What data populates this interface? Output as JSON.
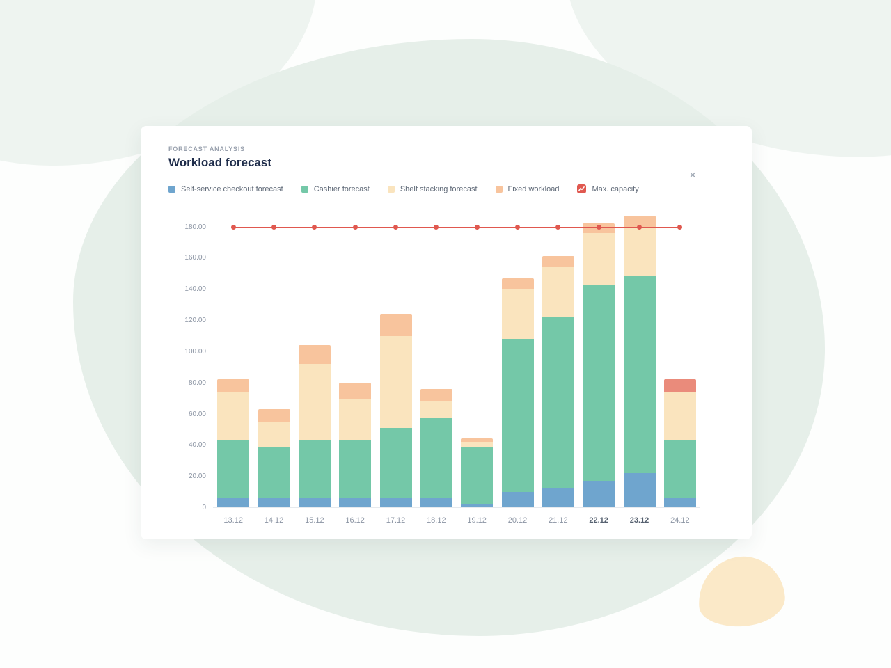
{
  "card": {
    "eyebrow": "FORECAST ANALYSIS",
    "title": "Workload forecast",
    "close_label": "×"
  },
  "legend": [
    {
      "label": "Self-service checkout forecast",
      "color": "#6FA5CE",
      "icon": "square"
    },
    {
      "label": "Cashier forecast",
      "color": "#74C8A8",
      "icon": "square"
    },
    {
      "label": "Shelf stacking forecast",
      "color": "#FAE4BE",
      "icon": "square"
    },
    {
      "label": "Fixed workload",
      "color": "#F8C49D",
      "icon": "square"
    },
    {
      "label": "Max. capacity",
      "color": "#E0584F",
      "icon": "zigzag"
    }
  ],
  "chart_data": {
    "type": "bar",
    "subtype": "stacked-bars-with-capacity-line",
    "categories": [
      "13.12",
      "14.12",
      "15.12",
      "16.12",
      "17.12",
      "18.12",
      "19.12",
      "20.12",
      "21.12",
      "22.12",
      "23.12",
      "24.12"
    ],
    "bold_categories": [
      "22.12",
      "23.12"
    ],
    "series": [
      {
        "name": "Self-service checkout forecast",
        "color": "#6FA5CE",
        "values": [
          6,
          6,
          6,
          6,
          6,
          6,
          2,
          10,
          12,
          17,
          22,
          6
        ]
      },
      {
        "name": "Cashier forecast",
        "color": "#74C8A8",
        "values": [
          37,
          33,
          37,
          37,
          45,
          51,
          37,
          98,
          110,
          126,
          126,
          37
        ]
      },
      {
        "name": "Shelf stacking forecast",
        "color": "#FAE4BE",
        "values": [
          31,
          16,
          49,
          26,
          59,
          11,
          3,
          32,
          32,
          33,
          32,
          31
        ]
      },
      {
        "name": "Fixed workload",
        "color": "#F8C49D",
        "values": [
          8,
          8,
          12,
          11,
          14,
          8,
          2,
          7,
          7,
          6,
          7,
          8
        ]
      }
    ],
    "totals": [
      82,
      63,
      104,
      80,
      124,
      76,
      44,
      147,
      161,
      182,
      187,
      82
    ],
    "overload": {
      "category": "24.12",
      "series": "Fixed workload",
      "color": "#EA8B7B"
    },
    "max_capacity": {
      "label": "Max. capacity",
      "value": 180,
      "color": "#E0584F"
    },
    "y_ticks": [
      "180.00",
      "160.00",
      "140.00",
      "120.00",
      "100.00",
      "80.00",
      "60.00",
      "40.00",
      "20.00",
      "0"
    ],
    "ylim": [
      0,
      195
    ],
    "grid": false,
    "legend_position": "top"
  }
}
